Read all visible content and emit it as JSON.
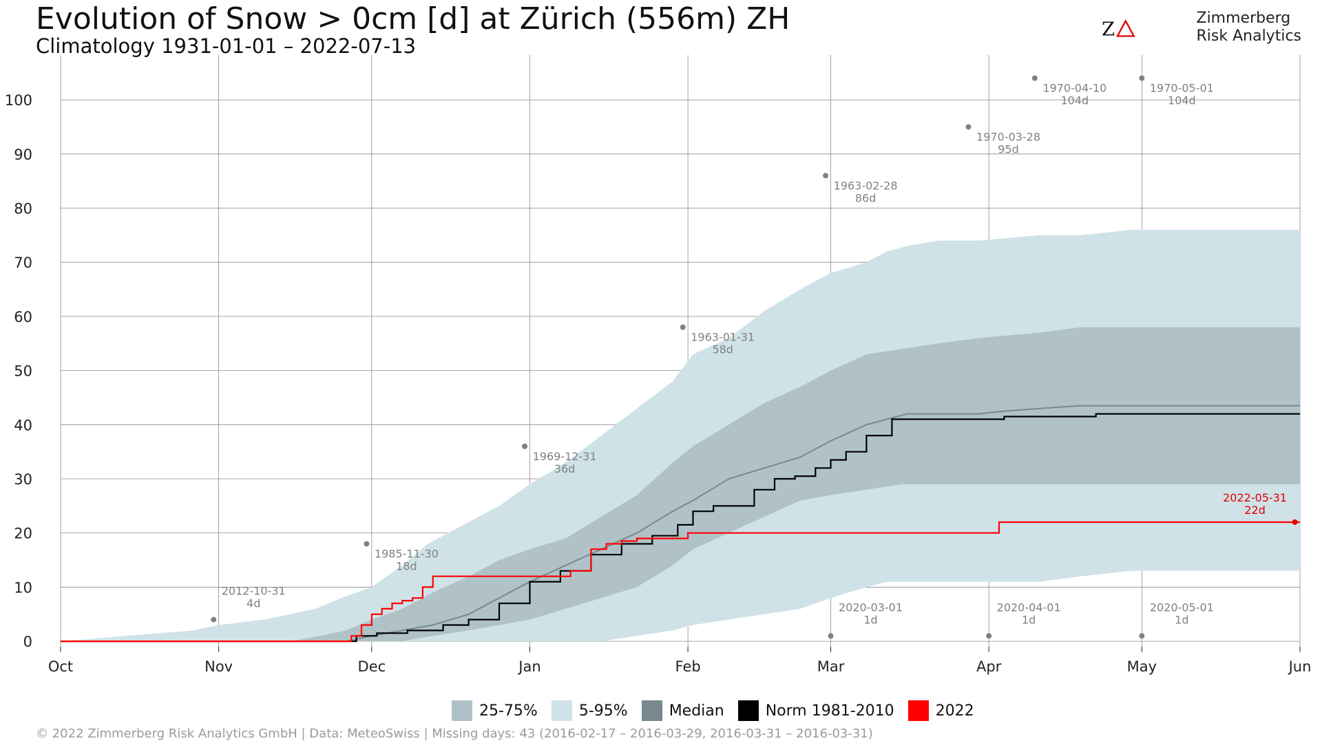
{
  "header": {
    "title": "Evolution of Snow > 0cm [d] at Zürich (556m) ZH",
    "subtitle": "Climatology 1931-01-01 – 2022-07-13"
  },
  "logo": {
    "mark": "ZΔ",
    "line1": "Zimmerberg",
    "line2": "Risk Analytics",
    "accent_color": "#e00000"
  },
  "footer": {
    "text": "©  2022 Zimmerberg Risk Analytics GmbH | Data: MeteoSwiss | Missing days: 43 (2016-02-17 – 2016-03-29, 2016-03-31 – 2016-03-31)"
  },
  "chart_data": {
    "type": "line",
    "x_axis": {
      "unit": "day of season",
      "ticks": [
        {
          "label": "Oct",
          "day": 0
        },
        {
          "label": "Nov",
          "day": 31
        },
        {
          "label": "Dec",
          "day": 61
        },
        {
          "label": "Jan",
          "day": 92
        },
        {
          "label": "Feb",
          "day": 123
        },
        {
          "label": "Mar",
          "day": 151
        },
        {
          "label": "Apr",
          "day": 182
        },
        {
          "label": "May",
          "day": 212
        },
        {
          "label": "Jun",
          "day": 243
        }
      ],
      "xlim": [
        0,
        243
      ]
    },
    "y_axis": {
      "ticks": [
        0,
        10,
        20,
        30,
        40,
        50,
        60,
        70,
        80,
        90,
        100
      ],
      "ylim": [
        -1,
        107
      ]
    },
    "grid": true,
    "legend_position": "bottom",
    "legend": [
      {
        "label": "25-75%",
        "color": "#b0c2c8"
      },
      {
        "label": "5-95%",
        "color": "#cfe2e8"
      },
      {
        "label": "Median",
        "color": "#77888f"
      },
      {
        "label": "Norm 1981-2010",
        "color": "#000000"
      },
      {
        "label": "2022",
        "color": "#ff0000"
      }
    ],
    "band_5_95": {
      "color": "#cfe2e8",
      "x": [
        0,
        26,
        31,
        40,
        50,
        55,
        61,
        67,
        72,
        80,
        86,
        92,
        99,
        106,
        113,
        120,
        124,
        131,
        138,
        145,
        151,
        158,
        162,
        166,
        172,
        180,
        192,
        200,
        210,
        243
      ],
      "upper": [
        0,
        2,
        3,
        4,
        6,
        8,
        10,
        14,
        18,
        22,
        25,
        29,
        33,
        38,
        43,
        48,
        53,
        56,
        61,
        65,
        68,
        70,
        72,
        73,
        74,
        74,
        75,
        75,
        76,
        76
      ],
      "lower": [
        0,
        0,
        0,
        0,
        0,
        0,
        0,
        0,
        0,
        0,
        0,
        0,
        0,
        0,
        1,
        2,
        3,
        4,
        5,
        6,
        8,
        10,
        11,
        11,
        11,
        11,
        11,
        12,
        13,
        13
      ]
    },
    "band_25_75": {
      "color": "#b0c2c8",
      "x": [
        0,
        45,
        51,
        56,
        61,
        67,
        73,
        80,
        86,
        92,
        99,
        106,
        113,
        120,
        124,
        131,
        138,
        145,
        151,
        158,
        165,
        172,
        180,
        192,
        200,
        210,
        243
      ],
      "upper": [
        0,
        0,
        1,
        2,
        4,
        6,
        9,
        12,
        15,
        17,
        19,
        23,
        27,
        33,
        36,
        40,
        44,
        47,
        50,
        53,
        54,
        55,
        56,
        57,
        58,
        58,
        58
      ],
      "lower": [
        0,
        0,
        0,
        0,
        0,
        0,
        1,
        2,
        3,
        4,
        6,
        8,
        10,
        14,
        17,
        20,
        23,
        26,
        27,
        28,
        29,
        29,
        29,
        29,
        29,
        29,
        29
      ]
    },
    "series": [
      {
        "name": "Median",
        "color": "#77888f",
        "x": [
          0,
          56,
          61,
          67,
          73,
          80,
          86,
          92,
          99,
          106,
          113,
          120,
          124,
          131,
          138,
          145,
          151,
          158,
          162,
          166,
          172,
          180,
          185,
          192,
          200,
          210,
          243
        ],
        "y": [
          0,
          0,
          1,
          2,
          3,
          5,
          8,
          11,
          14,
          17,
          20,
          24,
          26,
          30,
          32,
          34,
          37,
          40,
          41,
          42,
          42,
          42,
          42.5,
          43,
          43.5,
          43.5,
          43.5
        ]
      },
      {
        "name": "Norm 1981-2010",
        "color": "#000000",
        "x": [
          0,
          54,
          58,
          62,
          68,
          75,
          80,
          86,
          92,
          98,
          104,
          110,
          116,
          121,
          124,
          128,
          132,
          136,
          140,
          144,
          148,
          151,
          154,
          158,
          163,
          169,
          176,
          182,
          185,
          190,
          196,
          203,
          210,
          243
        ],
        "y": [
          0,
          0,
          1,
          1.5,
          2,
          3,
          4,
          7,
          11,
          13,
          16,
          18,
          19.5,
          21.5,
          24,
          25,
          25,
          28,
          30,
          30.5,
          32,
          33.5,
          35,
          38,
          41,
          41,
          41,
          41,
          41.5,
          41.5,
          41.5,
          42,
          42,
          42
        ]
      },
      {
        "name": "2022",
        "color": "#ff0000",
        "x": [
          0,
          55,
          57,
          59,
          61,
          63,
          65,
          67,
          69,
          71,
          73,
          75,
          78,
          87,
          93,
          97,
          100,
          104,
          107,
          110,
          113,
          117,
          120,
          123,
          182,
          184,
          243
        ],
        "y": [
          0,
          0,
          1,
          3,
          5,
          6,
          7,
          7.5,
          8,
          10,
          12,
          12,
          12,
          12,
          12,
          12,
          13,
          17,
          18,
          18.5,
          19,
          19,
          19,
          20,
          20,
          22,
          22
        ]
      }
    ],
    "annotations": [
      {
        "date": "2012-10-31",
        "value": "4d",
        "x": 30,
        "y": 4
      },
      {
        "date": "1985-11-30",
        "value": "18d",
        "x": 60,
        "y": 18
      },
      {
        "date": "1969-12-31",
        "value": "36d",
        "x": 91,
        "y": 36
      },
      {
        "date": "1963-01-31",
        "value": "58d",
        "x": 122,
        "y": 58
      },
      {
        "date": "1963-02-28",
        "value": "86d",
        "x": 150,
        "y": 86
      },
      {
        "date": "1970-03-28",
        "value": "95d",
        "x": 178,
        "y": 95
      },
      {
        "date": "1970-04-10",
        "value": "104d",
        "x": 191,
        "y": 104
      },
      {
        "date": "1970-05-01",
        "value": "104d",
        "x": 212,
        "y": 104
      },
      {
        "date": "2020-03-01",
        "value": "1d",
        "x": 151,
        "y": 1
      },
      {
        "date": "2020-04-01",
        "value": "1d",
        "x": 182,
        "y": 1
      },
      {
        "date": "2020-05-01",
        "value": "1d",
        "x": 212,
        "y": 1
      },
      {
        "date": "2022-05-31",
        "value": "22d",
        "x": 242,
        "y": 22,
        "color": "#e00000"
      }
    ]
  }
}
